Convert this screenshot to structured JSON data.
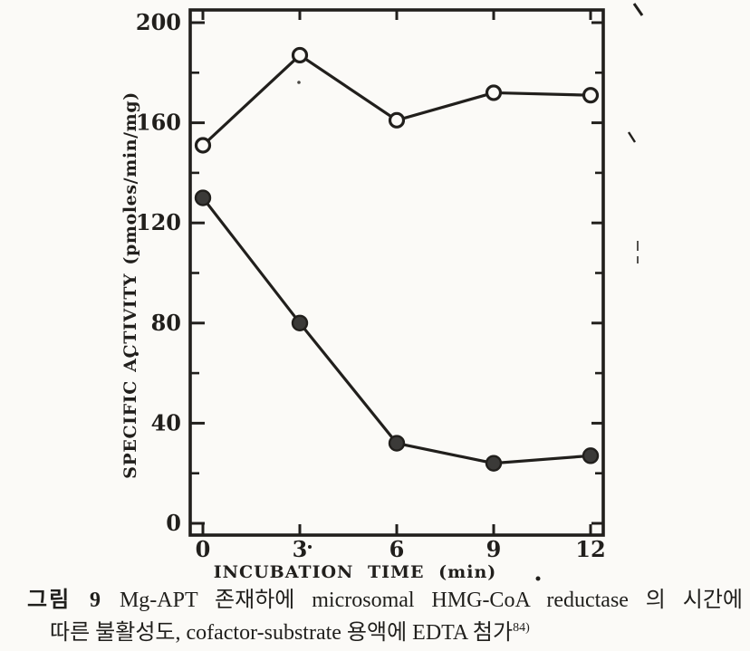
{
  "figure": {
    "caption": {
      "label": "그림 9",
      "line1_rest": "Mg-APT 존재하에 microsomal HMG-CoA reductase 의 시간에",
      "line2": "따른 불활성도, cofactor-substrate 용액에 EDTA 첨가",
      "reference_superscript": "84)"
    }
  },
  "chart_data": {
    "type": "line",
    "title": "",
    "xlabel": "INCUBATION TIME (min)",
    "ylabel": "SPECIFIC ACTIVITY (pmoles/min/mg)",
    "x": [
      0,
      3,
      6,
      9,
      12
    ],
    "xlim": [
      0,
      12
    ],
    "ylim": [
      0,
      200
    ],
    "x_ticks": [
      0,
      3,
      6,
      9,
      12
    ],
    "y_ticks_major": [
      0,
      40,
      80,
      120,
      160,
      200
    ],
    "y_ticks_minor": [
      20,
      60,
      100,
      140,
      180
    ],
    "grid": false,
    "legend": "none",
    "frame": "full-box-with-inward-ticks",
    "series": [
      {
        "name": "open-circle-series",
        "marker": "open-circle",
        "values": [
          151,
          187,
          161,
          172,
          171
        ]
      },
      {
        "name": "filled-circle-series",
        "marker": "filled-circle",
        "values": [
          130,
          80,
          32,
          24,
          27
        ]
      }
    ],
    "ink_color": "#211f1c",
    "filled_marker_color": "#3b3a38",
    "paper_color": "#fbfaf7"
  }
}
